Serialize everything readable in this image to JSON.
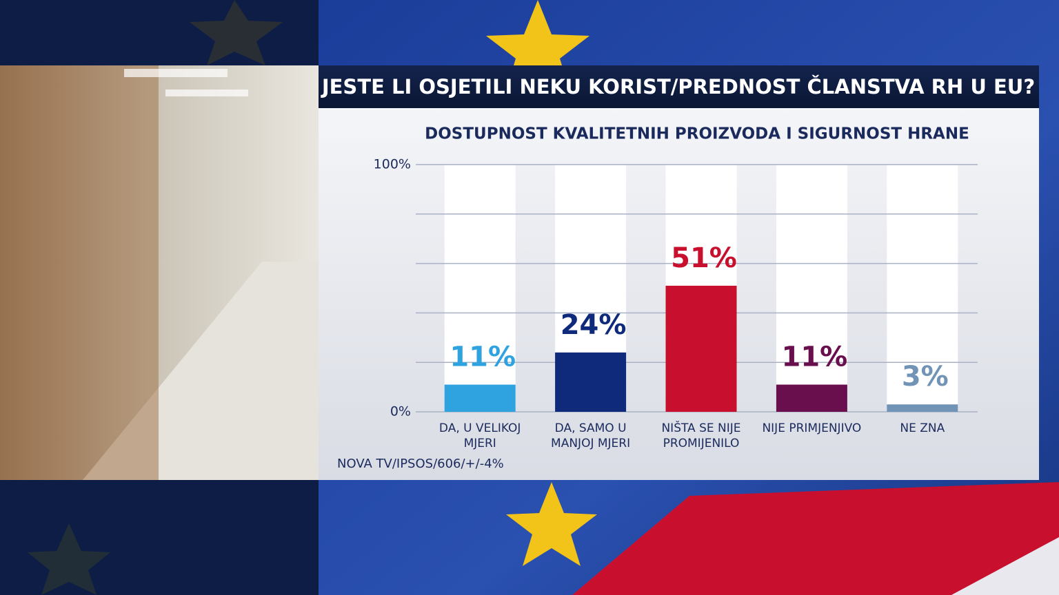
{
  "chart_data": {
    "type": "bar",
    "title": "JESTE LI OSJETILI NEKU KORIST/PREDNOST ČLANSTVA RH U EU?",
    "subtitle": "DOSTUPNOST KVALITETNIH PROIZVODA I SIGURNOST HRANE",
    "categories": [
      "DA, U VELIKOJ MJERI",
      "DA, SAMO U MANJOJ MJERI",
      "NIŠTA SE NIJE PROMIJENILO",
      "NIJE PRIMJENJIVO",
      "NE ZNA"
    ],
    "values": [
      11,
      24,
      51,
      11,
      3
    ],
    "value_labels": [
      "11%",
      "24%",
      "51%",
      "11%",
      "3%"
    ],
    "colors": [
      "#2ea3e0",
      "#0f2a7a",
      "#c8102e",
      "#6a0f4e",
      "#7194b6"
    ],
    "ylim": [
      0,
      100
    ],
    "yticks": [
      {
        "value": 0,
        "label": "0%"
      },
      {
        "value": 100,
        "label": "100%"
      }
    ],
    "gridlines": [
      20,
      40,
      60,
      80
    ],
    "grid": true,
    "source": "NOVA TV/IPSOS/606/+/-4%"
  }
}
